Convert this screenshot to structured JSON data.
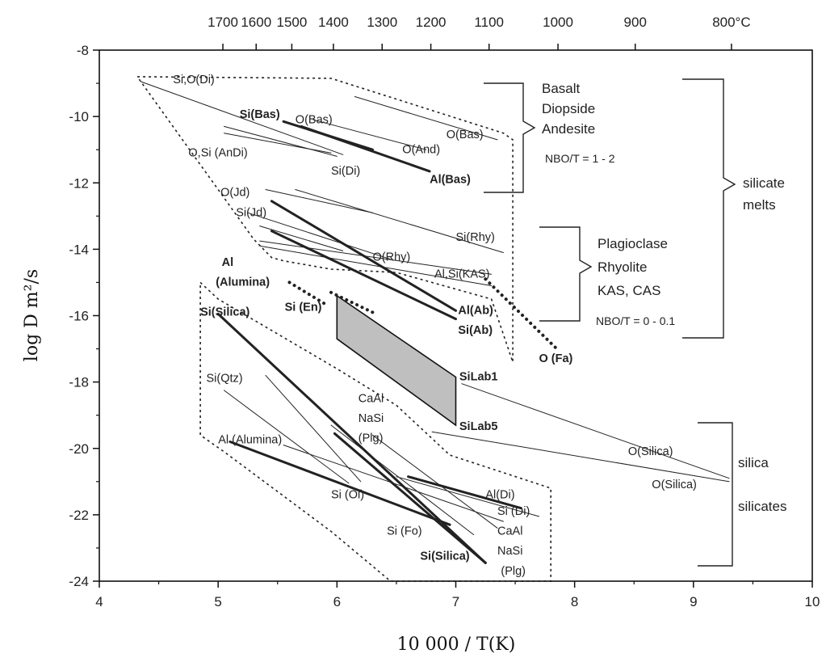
{
  "chart_data": {
    "type": "line",
    "xlabel": "10 000 / T(K)",
    "ylabel": "log D m²/s",
    "xlim": [
      4,
      10
    ],
    "ylim": [
      -24,
      -8
    ],
    "grid": false,
    "x_ticks": [
      "4",
      "5",
      "6",
      "7",
      "8",
      "9",
      "10"
    ],
    "y_ticks": [
      "-24",
      "-22",
      "-20",
      "-18",
      "-16",
      "-14",
      "-12",
      "-10",
      "-8"
    ],
    "top_axis_ticks": [
      {
        "label": "1700",
        "x": 5.04
      },
      {
        "label": "1600",
        "x": 5.32
      },
      {
        "label": "1500",
        "x": 5.62
      },
      {
        "label": "1400",
        "x": 5.97
      },
      {
        "label": "1300",
        "x": 6.38
      },
      {
        "label": "1200",
        "x": 6.79
      },
      {
        "label": "1100",
        "x": 7.28
      },
      {
        "label": "1000",
        "x": 7.86
      },
      {
        "label": "900",
        "x": 8.51
      },
      {
        "label": "800°C",
        "x": 9.32
      }
    ],
    "series": [
      {
        "label": "Si,O(Di)",
        "weight": "thin",
        "x": [
          4.35,
          6.05
        ],
        "y": [
          -8.95,
          -11.15
        ]
      },
      {
        "label": "O(Bas)",
        "weight": "thin",
        "x": [
          5.8,
          6.75
        ],
        "y": [
          -10.1,
          -11.0
        ]
      },
      {
        "label": "O(Bas)",
        "weight": "thin",
        "x": [
          6.15,
          7.35
        ],
        "y": [
          -9.4,
          -10.7
        ]
      },
      {
        "label": "Si(Bas)",
        "weight": "thick",
        "x": [
          5.55,
          6.3
        ],
        "y": [
          -10.15,
          -11.0
        ]
      },
      {
        "label": "Al(Bas)",
        "weight": "thick",
        "x": [
          5.7,
          6.78
        ],
        "y": [
          -10.3,
          -11.65
        ]
      },
      {
        "label": "O,Si (AnDi)",
        "weight": "thin",
        "x": [
          5.05,
          6.0
        ],
        "y": [
          -10.3,
          -11.2
        ]
      },
      {
        "label": "O,Si (AnDi)",
        "weight": "thin",
        "x": [
          5.05,
          5.95
        ],
        "y": [
          -10.5,
          -11.1
        ]
      },
      {
        "label": "O(Jd)",
        "weight": "thin",
        "x": [
          5.4,
          6.3
        ],
        "y": [
          -12.2,
          -12.9
        ]
      },
      {
        "label": "Si(Rhy)",
        "weight": "thin",
        "x": [
          5.65,
          7.4
        ],
        "y": [
          -12.2,
          -14.1
        ]
      },
      {
        "label": "Si(Jd)",
        "weight": "thin",
        "x": [
          5.25,
          6.45
        ],
        "y": [
          -12.9,
          -14.3
        ]
      },
      {
        "label": "Si(Jd)",
        "weight": "thin",
        "x": [
          5.35,
          6.05
        ],
        "y": [
          -13.3,
          -14.05
        ]
      },
      {
        "label": "O(Rhy)",
        "weight": "thin",
        "x": [
          5.35,
          7.3
        ],
        "y": [
          -13.75,
          -14.75
        ]
      },
      {
        "label": "Al,Si(KAS)",
        "weight": "thin",
        "x": [
          5.35,
          7.3
        ],
        "y": [
          -13.9,
          -15.1
        ]
      },
      {
        "label": "Al(Ab)",
        "weight": "thick",
        "x": [
          5.45,
          7.0
        ],
        "y": [
          -12.55,
          -15.85
        ]
      },
      {
        "label": "Si(Ab)",
        "weight": "thick",
        "x": [
          5.45,
          7.0
        ],
        "y": [
          -13.45,
          -16.1
        ]
      },
      {
        "label": "Si(Silica)",
        "weight": "thick",
        "x": [
          5.0,
          7.25
        ],
        "y": [
          -15.95,
          -23.45
        ]
      },
      {
        "label": "Si(Qtz)",
        "weight": "thin",
        "x": [
          5.4,
          6.2
        ],
        "y": [
          -17.8,
          -21.0
        ]
      },
      {
        "label": "Al (Alumina)",
        "weight": "thin",
        "x": [
          5.05,
          6.1
        ],
        "y": [
          -18.25,
          -21.05
        ]
      },
      {
        "label": "Al (Alumina)",
        "weight": "thin",
        "x": [
          5.55,
          7.4
        ],
        "y": [
          -19.9,
          -22.2
        ]
      },
      {
        "label": "CaAl NaSi (Plg)",
        "weight": "thin",
        "x": [
          5.95,
          7.15
        ],
        "y": [
          -19.3,
          -22.6
        ]
      },
      {
        "label": "CaAl NaSi (Plg)",
        "weight": "thin",
        "x": [
          6.3,
          7.35
        ],
        "y": [
          -19.6,
          -22.4
        ]
      },
      {
        "label": "Si (Ol)",
        "weight": "thick",
        "x": [
          5.98,
          7.25
        ],
        "y": [
          -19.55,
          -23.45
        ]
      },
      {
        "label": "Al(Di)",
        "weight": "thick",
        "x": [
          6.6,
          7.55
        ],
        "y": [
          -20.85,
          -21.8
        ]
      },
      {
        "label": "Si (Di)",
        "weight": "thin",
        "x": [
          6.5,
          7.7
        ],
        "y": [
          -20.85,
          -22.05
        ]
      },
      {
        "label": "Si (Fo)",
        "weight": "thick",
        "x": [
          5.1,
          6.95
        ],
        "y": [
          -19.8,
          -22.3
        ]
      },
      {
        "label": "O(Silica)",
        "weight": "thin",
        "x": [
          7.05,
          9.3
        ],
        "y": [
          -18.05,
          -20.9
        ]
      },
      {
        "label": "O(Silica)",
        "weight": "thin",
        "x": [
          6.8,
          9.3
        ],
        "y": [
          -19.5,
          -21.0
        ]
      },
      {
        "label": "Al (Alumina)",
        "weight": "dotted",
        "x": [
          5.6,
          5.9
        ],
        "y": [
          -15.0,
          -15.65
        ]
      },
      {
        "label": "Si (En)",
        "weight": "dotted",
        "x": [
          5.95,
          6.3
        ],
        "y": [
          -15.3,
          -15.9
        ]
      },
      {
        "label": "O (Fa)",
        "weight": "dotted",
        "x": [
          7.25,
          7.85
        ],
        "y": [
          -14.9,
          -17.0
        ]
      }
    ],
    "shaded_region": {
      "x": [
        6.0,
        7.0,
        7.0,
        6.0
      ],
      "y": [
        -15.4,
        -17.85,
        -19.3,
        -16.7
      ]
    },
    "envelopes": [
      {
        "x": [
          4.32,
          5.95,
          7.4,
          7.48,
          7.48,
          7.3,
          6.5,
          5.95,
          5.55,
          5.45,
          5.3,
          4.32
        ],
        "y": [
          -8.8,
          -8.85,
          -10.5,
          -10.7,
          -17.4,
          -15.5,
          -14.7,
          -14.6,
          -14.35,
          -14.25,
          -13.7,
          -8.8
        ]
      },
      {
        "x": [
          4.85,
          5.0,
          6.0,
          6.5,
          6.95,
          7.8,
          7.8,
          6.45,
          5.95,
          5.05,
          4.85,
          4.85
        ],
        "y": [
          -15.0,
          -15.5,
          -17.6,
          -18.7,
          -20.2,
          -21.2,
          -24.0,
          -24.0,
          -22.5,
          -20.1,
          -19.6,
          -15.0
        ]
      }
    ],
    "labels": [
      {
        "text": "Si,O(Di)",
        "x": 4.62,
        "y": -9.0,
        "bold": false
      },
      {
        "text": "Si(Bas)",
        "x": 5.18,
        "y": -10.05,
        "bold": true
      },
      {
        "text": "O(Bas)",
        "x": 5.65,
        "y": -10.2,
        "bold": false
      },
      {
        "text": "O(Bas)",
        "x": 6.92,
        "y": -10.65,
        "bold": false
      },
      {
        "text": "O(And)",
        "x": 6.55,
        "y": -11.1,
        "bold": false
      },
      {
        "text": "O,Si (AnDi)",
        "x": 4.75,
        "y": -11.2,
        "bold": false
      },
      {
        "text": "Si(Di)",
        "x": 5.95,
        "y": -11.75,
        "bold": false
      },
      {
        "text": "Al(Bas)",
        "x": 6.78,
        "y": -12.0,
        "bold": true
      },
      {
        "text": "O(Jd)",
        "x": 5.02,
        "y": -12.4,
        "bold": false
      },
      {
        "text": "Si(Jd)",
        "x": 5.15,
        "y": -13.0,
        "bold": false
      },
      {
        "text": "Si(Rhy)",
        "x": 7.0,
        "y": -13.75,
        "bold": false
      },
      {
        "text": "O(Rhy)",
        "x": 6.3,
        "y": -14.35,
        "bold": false
      },
      {
        "text": "Al,Si(KAS)",
        "x": 6.82,
        "y": -14.85,
        "bold": false
      },
      {
        "text": "Al",
        "x": 5.03,
        "y": -14.5,
        "bold": true
      },
      {
        "text": "(Alumina)",
        "x": 4.98,
        "y": -15.1,
        "bold": true
      },
      {
        "text": "Si (En)",
        "x": 5.56,
        "y": -15.85,
        "bold": true
      },
      {
        "text": "Al(Ab)",
        "x": 7.02,
        "y": -15.95,
        "bold": true
      },
      {
        "text": "Si(Ab)",
        "x": 7.02,
        "y": -16.55,
        "bold": true
      },
      {
        "text": "O (Fa)",
        "x": 7.7,
        "y": -17.4,
        "bold": true
      },
      {
        "text": "Si(Silica)",
        "x": 4.85,
        "y": -16.0,
        "bold": true
      },
      {
        "text": "Si(Qtz)",
        "x": 4.9,
        "y": -18.0,
        "bold": false
      },
      {
        "text": "SiLab1",
        "x": 7.03,
        "y": -17.95,
        "bold": true
      },
      {
        "text": "SiLab5",
        "x": 7.03,
        "y": -19.45,
        "bold": true
      },
      {
        "text": "CaAl",
        "x": 6.18,
        "y": -18.6,
        "bold": false
      },
      {
        "text": "NaSi",
        "x": 6.18,
        "y": -19.2,
        "bold": false
      },
      {
        "text": "(Plg)",
        "x": 6.18,
        "y": -19.8,
        "bold": false
      },
      {
        "text": "Al (Alumina)",
        "x": 5.0,
        "y": -19.85,
        "bold": false
      },
      {
        "text": "O(Silica)",
        "x": 8.45,
        "y": -20.2,
        "bold": false
      },
      {
        "text": "O(Silica)",
        "x": 8.65,
        "y": -21.2,
        "bold": false
      },
      {
        "text": "Si (Ol)",
        "x": 5.95,
        "y": -21.5,
        "bold": false
      },
      {
        "text": "Al(Di)",
        "x": 7.25,
        "y": -21.5,
        "bold": false
      },
      {
        "text": "Si (Di)",
        "x": 7.35,
        "y": -22.0,
        "bold": false
      },
      {
        "text": "Si (Fo)",
        "x": 6.42,
        "y": -22.6,
        "bold": false
      },
      {
        "text": "CaAl",
        "x": 7.35,
        "y": -22.6,
        "bold": false
      },
      {
        "text": "NaSi",
        "x": 7.35,
        "y": -23.2,
        "bold": false
      },
      {
        "text": "Si(Silica)",
        "x": 6.7,
        "y": -23.35,
        "bold": true
      },
      {
        "text": "(Plg)",
        "x": 7.38,
        "y": -23.8,
        "bold": false
      }
    ],
    "groups": [
      {
        "lines": [
          "Basalt",
          "Diopside",
          "Andesite"
        ],
        "note": "NBO/T = 1 - 2"
      },
      {
        "lines": [
          "Plagioclase",
          "Rhyolite",
          "KAS, CAS"
        ],
        "note": "NBO/T = 0 - 0.1"
      },
      {
        "lines": [
          "silicate",
          "melts"
        ],
        "note": ""
      },
      {
        "lines": [
          "silica",
          "silicates"
        ],
        "note": ""
      }
    ]
  }
}
